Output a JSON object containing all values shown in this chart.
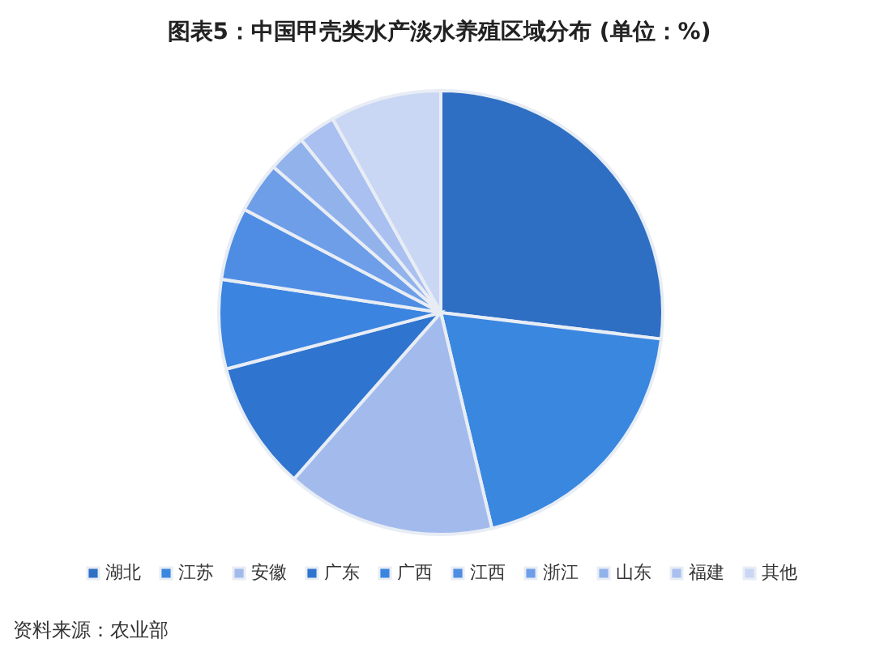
{
  "chart_data": {
    "type": "pie",
    "title": "图表5：中国甲壳类水产淡水养殖区域分布 (单位：%)",
    "categories": [
      "湖北",
      "江苏",
      "安徽",
      "广东",
      "广西",
      "江西",
      "浙江",
      "山东",
      "福建",
      "其他"
    ],
    "values": [
      26.9,
      19.4,
      15.2,
      9.4,
      6.5,
      5.3,
      3.7,
      2.8,
      2.7,
      8.1
    ],
    "colors": [
      "#2e6fc4",
      "#3a87e0",
      "#a3bbec",
      "#2f74cf",
      "#3b84e0",
      "#4e8de3",
      "#6e9ee8",
      "#92b2ec",
      "#a9c0f0",
      "#c9d7f5"
    ],
    "legend": "bottom",
    "annotations": [
      "资料来源：农业部"
    ]
  }
}
